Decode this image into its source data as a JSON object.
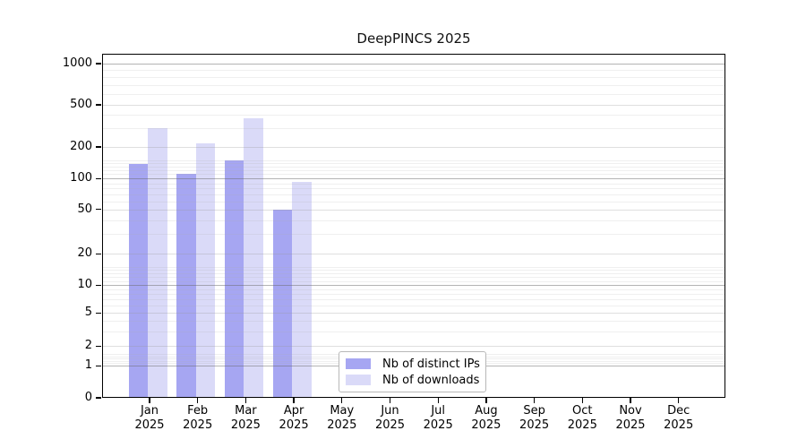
{
  "chart_data": {
    "type": "bar",
    "title": "DeepPINCS 2025",
    "year_label": "2025",
    "categories": [
      "Jan",
      "Feb",
      "Mar",
      "Apr",
      "May",
      "Jun",
      "Jul",
      "Aug",
      "Sep",
      "Oct",
      "Nov",
      "Dec"
    ],
    "series": [
      {
        "name": "Nb of distinct IPs",
        "color": "#a6a6f2",
        "values": [
          138,
          110,
          150,
          50,
          null,
          null,
          null,
          null,
          null,
          null,
          null,
          null
        ]
      },
      {
        "name": "Nb of downloads",
        "color": "#dadaf8",
        "values": [
          300,
          215,
          370,
          92,
          null,
          null,
          null,
          null,
          null,
          null,
          null,
          null
        ]
      }
    ],
    "yticks": [
      0,
      1,
      2,
      5,
      10,
      20,
      50,
      100,
      200,
      500,
      1000
    ],
    "xlabel": "",
    "ylabel": "",
    "yscale": "log-like (0 baseline, log above 1)",
    "grid": "on",
    "legend_position": "inside bottom-center",
    "background_color": "#ffffff",
    "axis_color": "#000000"
  }
}
